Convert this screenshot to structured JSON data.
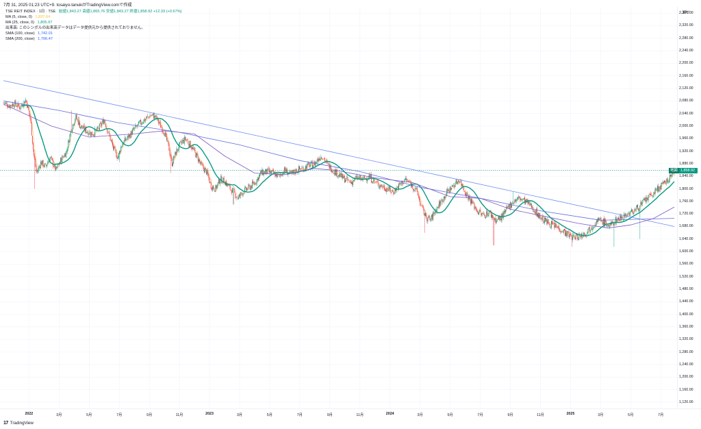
{
  "caption": "7月 31, 2025 01:23 UTC+9.  tosaiyo-tanukiがTradingView.comで作成",
  "header": {
    "symbol": "TSE REIT INDEX · 1日 · TSE",
    "ohlc": "始値1,843.27  高値1,865.76  安値1,843.27  終値1,858.92  +12.33 (+0.67%)"
  },
  "legend": [
    {
      "label": "MA (5, close, 0)",
      "value": "1,837.64",
      "color": "#fbc02d"
    },
    {
      "label": "MA (25, close, 0)",
      "value": "1,805.97",
      "color": "#089981"
    },
    {
      "label": "出来高: このシンボルの出来高データはデータ提供元から提供されておりません。",
      "value": "",
      "color": "#131722"
    },
    {
      "label": "SMA (100, close)",
      "value": "1,742.01",
      "color": "#2962ff"
    },
    {
      "label": "SMA (200, close)",
      "value": "1,706.47",
      "color": "#2962ff"
    }
  ],
  "currency": "JPY",
  "price_tag": {
    "name": "地図",
    "value": "1,858.92",
    "color": "#089981"
  },
  "brand": {
    "logo": "17",
    "name": "TradingView"
  },
  "colors": {
    "up": "#089981",
    "down": "#f23645",
    "ma5": "#fbc02d",
    "ma25": "#089981",
    "sma100": "#7e57c2",
    "sma200": "#5b6bd8",
    "trend": "#6a8af0"
  },
  "chart_data": {
    "type": "candlestick",
    "ylim": [
      1100,
      2380
    ],
    "y_ticks": [
      "2,360.00",
      "2,320.00",
      "2,280.00",
      "2,240.00",
      "2,200.00",
      "2,160.00",
      "2,120.00",
      "2,080.00",
      "2,040.00",
      "2,000.00",
      "1,960.00",
      "1,920.00",
      "1,880.00",
      "1,840.00",
      "1,800.00",
      "1,760.00",
      "1,720.00",
      "1,680.00",
      "1,640.00",
      "1,600.00",
      "1,560.00",
      "1,520.00",
      "1,480.00",
      "1,440.00",
      "1,400.00",
      "1,360.00",
      "1,320.00",
      "1,280.00",
      "1,240.00",
      "1,200.00",
      "1,160.00",
      "1,120.00"
    ],
    "x_ticks": [
      "2022",
      "3月",
      "5月",
      "7月",
      "9月",
      "11月",
      "2023",
      "3月",
      "5月",
      "7月",
      "9月",
      "11月",
      "2024",
      "3月",
      "5月",
      "7月",
      "9月",
      "11月",
      "2025",
      "3月",
      "5月",
      "7月"
    ],
    "x_tick_types": [
      "year",
      "m",
      "m",
      "m",
      "m",
      "m",
      "year",
      "m",
      "m",
      "m",
      "m",
      "m",
      "year",
      "m",
      "m",
      "m",
      "m",
      "m",
      "year",
      "m",
      "m",
      "m"
    ],
    "x_tick_months": [
      0,
      2,
      4,
      6,
      8,
      10,
      12,
      14,
      16,
      18,
      20,
      22,
      24,
      26,
      28,
      30,
      32,
      34,
      36,
      38,
      40,
      42
    ],
    "start_month": -1.7,
    "end_month": 42.9,
    "close_path": [
      [
        -1.7,
        2075
      ],
      [
        -1.3,
        2065
      ],
      [
        -1.0,
        2072
      ],
      [
        -0.6,
        2060
      ],
      [
        -0.2,
        2085
      ],
      [
        0.1,
        2020
      ],
      [
        0.3,
        1915
      ],
      [
        0.5,
        1850
      ],
      [
        0.8,
        1885
      ],
      [
        1.1,
        1870
      ],
      [
        1.4,
        1900
      ],
      [
        1.8,
        1860
      ],
      [
        2.1,
        1890
      ],
      [
        2.5,
        1920
      ],
      [
        2.8,
        1990
      ],
      [
        3.1,
        2030
      ],
      [
        3.4,
        2000
      ],
      [
        3.8,
        1985
      ],
      [
        4.2,
        1975
      ],
      [
        4.6,
        1990
      ],
      [
        5.0,
        2020
      ],
      [
        5.3,
        1975
      ],
      [
        5.6,
        1930
      ],
      [
        5.9,
        1900
      ],
      [
        6.2,
        1945
      ],
      [
        6.6,
        1965
      ],
      [
        7.0,
        1990
      ],
      [
        7.4,
        2010
      ],
      [
        7.8,
        2025
      ],
      [
        8.1,
        2035
      ],
      [
        8.4,
        2030
      ],
      [
        8.7,
        2005
      ],
      [
        9.0,
        1980
      ],
      [
        9.3,
        1930
      ],
      [
        9.5,
        1880
      ],
      [
        9.8,
        1920
      ],
      [
        10.1,
        1945
      ],
      [
        10.4,
        1960
      ],
      [
        10.8,
        1935
      ],
      [
        11.2,
        1900
      ],
      [
        11.5,
        1870
      ],
      [
        11.8,
        1855
      ],
      [
        12.1,
        1810
      ],
      [
        12.4,
        1800
      ],
      [
        12.7,
        1830
      ],
      [
        13.0,
        1825
      ],
      [
        13.3,
        1805
      ],
      [
        13.6,
        1790
      ],
      [
        13.9,
        1770
      ],
      [
        14.2,
        1790
      ],
      [
        14.5,
        1800
      ],
      [
        14.8,
        1810
      ],
      [
        15.1,
        1825
      ],
      [
        15.4,
        1850
      ],
      [
        15.8,
        1855
      ],
      [
        16.2,
        1850
      ],
      [
        16.6,
        1840
      ],
      [
        17.0,
        1860
      ],
      [
        17.4,
        1845
      ],
      [
        17.8,
        1860
      ],
      [
        18.2,
        1865
      ],
      [
        18.6,
        1875
      ],
      [
        19.0,
        1880
      ],
      [
        19.3,
        1900
      ],
      [
        19.5,
        1905
      ],
      [
        19.8,
        1880
      ],
      [
        20.2,
        1860
      ],
      [
        20.6,
        1845
      ],
      [
        21.0,
        1830
      ],
      [
        21.4,
        1820
      ],
      [
        21.8,
        1835
      ],
      [
        22.2,
        1830
      ],
      [
        22.6,
        1840
      ],
      [
        23.0,
        1820
      ],
      [
        23.4,
        1810
      ],
      [
        23.8,
        1800
      ],
      [
        24.2,
        1790
      ],
      [
        24.6,
        1810
      ],
      [
        25.0,
        1830
      ],
      [
        25.4,
        1815
      ],
      [
        25.8,
        1790
      ],
      [
        26.1,
        1740
      ],
      [
        26.4,
        1710
      ],
      [
        26.7,
        1700
      ],
      [
        27.0,
        1730
      ],
      [
        27.4,
        1760
      ],
      [
        27.8,
        1790
      ],
      [
        28.2,
        1810
      ],
      [
        28.6,
        1830
      ],
      [
        29.0,
        1790
      ],
      [
        29.4,
        1760
      ],
      [
        29.8,
        1730
      ],
      [
        30.2,
        1715
      ],
      [
        30.6,
        1725
      ],
      [
        31.0,
        1700
      ],
      [
        31.3,
        1705
      ],
      [
        31.6,
        1720
      ],
      [
        31.9,
        1745
      ],
      [
        32.2,
        1760
      ],
      [
        32.6,
        1770
      ],
      [
        33.0,
        1760
      ],
      [
        33.4,
        1745
      ],
      [
        33.8,
        1720
      ],
      [
        34.2,
        1700
      ],
      [
        34.6,
        1690
      ],
      [
        35.0,
        1680
      ],
      [
        35.4,
        1670
      ],
      [
        35.8,
        1655
      ],
      [
        36.2,
        1645
      ],
      [
        36.6,
        1650
      ],
      [
        37.0,
        1660
      ],
      [
        37.4,
        1680
      ],
      [
        37.8,
        1700
      ],
      [
        38.2,
        1695
      ],
      [
        38.6,
        1680
      ],
      [
        39.0,
        1700
      ],
      [
        39.4,
        1710
      ],
      [
        39.8,
        1720
      ],
      [
        40.2,
        1730
      ],
      [
        40.6,
        1745
      ],
      [
        41.0,
        1765
      ],
      [
        41.4,
        1780
      ],
      [
        41.8,
        1800
      ],
      [
        42.2,
        1815
      ],
      [
        42.6,
        1835
      ],
      [
        42.9,
        1859
      ]
    ],
    "spikes": [
      [
        0.4,
        1800
      ],
      [
        2.8,
        2050
      ],
      [
        3.3,
        2030
      ],
      [
        6.0,
        1885
      ],
      [
        9.4,
        1850
      ],
      [
        13.6,
        1750
      ],
      [
        26.3,
        1660
      ],
      [
        30.9,
        1620
      ],
      [
        32.2,
        1790
      ],
      [
        36.1,
        1615
      ],
      [
        38.9,
        1615
      ],
      [
        40.6,
        1640
      ]
    ],
    "lines": [
      {
        "name": "trendline",
        "from": [
          -1.7,
          2145
        ],
        "to": [
          42.9,
          1680
        ]
      },
      {
        "name": "sma200",
        "pts": [
          [
            -1.7,
            2080
          ],
          [
            2.0,
            2050
          ],
          [
            6.0,
            2010
          ],
          [
            10.0,
            1980
          ],
          [
            14.0,
            1940
          ],
          [
            18.0,
            1890
          ],
          [
            22.0,
            1855
          ],
          [
            26.0,
            1805
          ],
          [
            30.0,
            1770
          ],
          [
            34.0,
            1730
          ],
          [
            38.0,
            1700
          ],
          [
            42.9,
            1706
          ]
        ]
      },
      {
        "name": "sma100",
        "pts": [
          [
            -1.7,
            2070
          ],
          [
            1.5,
            2000
          ],
          [
            4.0,
            1965
          ],
          [
            7.0,
            1975
          ],
          [
            9.0,
            1985
          ],
          [
            11.0,
            1975
          ],
          [
            13.0,
            1905
          ],
          [
            15.0,
            1850
          ],
          [
            17.0,
            1845
          ],
          [
            19.0,
            1865
          ],
          [
            20.5,
            1858
          ],
          [
            23.0,
            1835
          ],
          [
            25.5,
            1820
          ],
          [
            28.0,
            1775
          ],
          [
            30.0,
            1770
          ],
          [
            32.0,
            1735
          ],
          [
            34.5,
            1710
          ],
          [
            36.5,
            1690
          ],
          [
            38.5,
            1675
          ],
          [
            40.0,
            1685
          ],
          [
            41.5,
            1705
          ],
          [
            42.9,
            1742
          ]
        ]
      }
    ]
  }
}
